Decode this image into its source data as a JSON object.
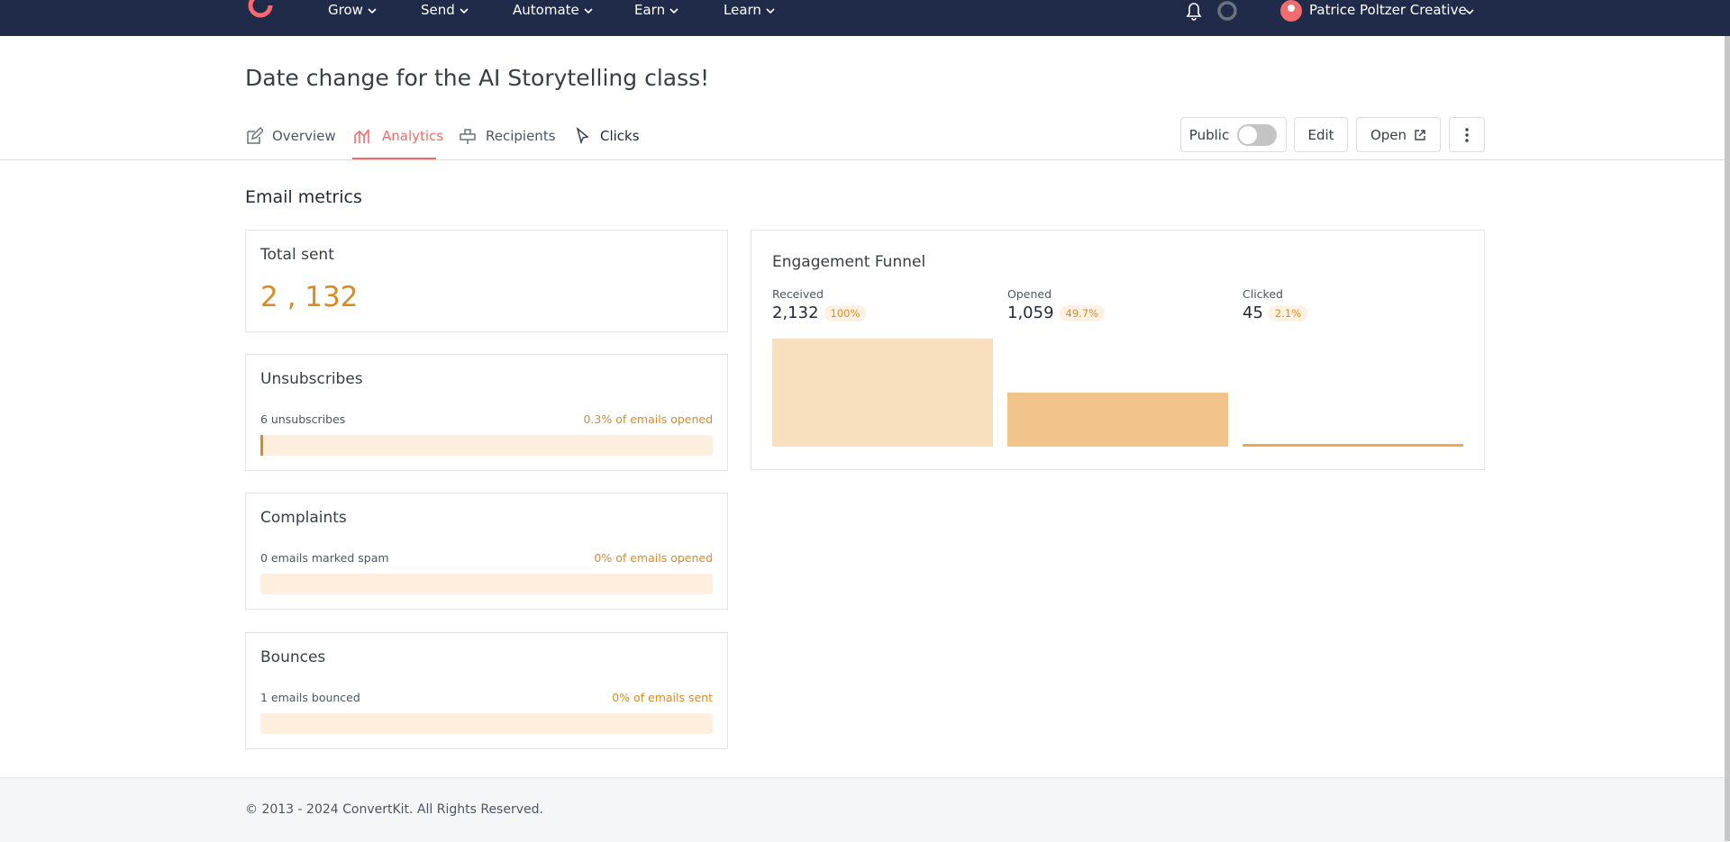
{
  "nav": {
    "items": [
      "Grow",
      "Send",
      "Automate",
      "Earn",
      "Learn"
    ],
    "account": "Patrice Poltzer Creative"
  },
  "header": {
    "title": "Date change for the AI Storytelling class!",
    "tabs": [
      "Overview",
      "Analytics",
      "Recipients",
      "Clicks"
    ],
    "public_label": "Public",
    "edit": "Edit",
    "open": "Open"
  },
  "section_title": "Email metrics",
  "total_sent": {
    "title": "Total sent",
    "value": "2 , 132"
  },
  "metrics": [
    {
      "title": "Unsubscribes",
      "detail": "6 unsubscribes",
      "rate": "0.3% of emails opened"
    },
    {
      "title": "Complaints",
      "detail": "0 emails marked spam",
      "rate": "0% of emails opened"
    },
    {
      "title": "Bounces",
      "detail": "1 emails bounced",
      "rate": "0% of emails sent"
    }
  ],
  "funnel": {
    "title": "Engagement Funnel",
    "stages": [
      {
        "name": "Received",
        "value": 2132,
        "value_label": "2,132",
        "percent": 100,
        "percent_label": "100%"
      },
      {
        "name": "Opened",
        "value": 1059,
        "value_label": "1,059",
        "percent": 49.7,
        "percent_label": "49.7%"
      },
      {
        "name": "Clicked",
        "value": 45,
        "value_label": "45",
        "percent": 2.1,
        "percent_label": "2.1%"
      }
    ]
  },
  "footer": "© 2013 - 2024 ConvertKit. All Rights Reserved."
}
